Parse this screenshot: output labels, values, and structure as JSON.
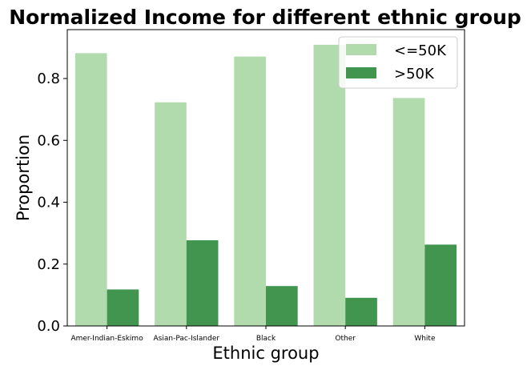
{
  "chart_data": {
    "type": "bar",
    "title": "Normalized Income for different ethnic group",
    "xlabel": "Ethnic group",
    "ylabel": "Proportion",
    "categories": [
      "Amer-Indian-Eskimo",
      "Asian-Pac-Islander",
      "Black",
      "Other",
      "White"
    ],
    "series": [
      {
        "name": "<=50K",
        "color": "#b2dbad",
        "values": [
          0.882,
          0.723,
          0.871,
          0.909,
          0.737
        ]
      },
      {
        "name": ">50K",
        "color": "#41954f",
        "values": [
          0.118,
          0.277,
          0.129,
          0.091,
          0.263
        ]
      }
    ],
    "ylim": [
      0,
      0.958
    ],
    "yticks": [
      0.0,
      0.2,
      0.4,
      0.6,
      0.8
    ],
    "ytick_labels": [
      "0.0",
      "0.2",
      "0.4",
      "0.6",
      "0.8"
    ],
    "grid": false,
    "legend_position": "top-right"
  }
}
